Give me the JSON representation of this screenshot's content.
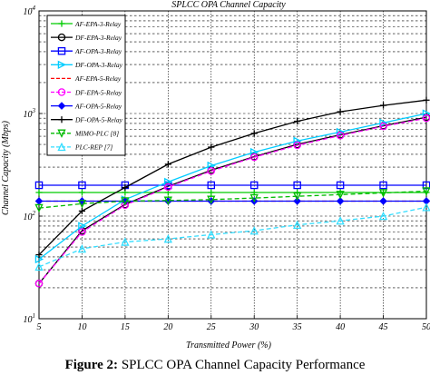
{
  "caption": {
    "label": "Figure 2:",
    "text": "SPLCC OPA Channel Capacity Performance"
  },
  "chart_data": {
    "type": "line",
    "title": "SPLCC OPA Channel Capacity",
    "xlabel": "Transmitted Power (%)",
    "ylabel": "Channel Capacity (Mbps)",
    "x": [
      5,
      10,
      15,
      20,
      25,
      30,
      35,
      40,
      45,
      50
    ],
    "xlim": [
      5,
      50
    ],
    "ylim": [
      10,
      10000
    ],
    "yscale": "log",
    "y_tick_exponents": [
      "1",
      "2",
      "3",
      "4"
    ],
    "grid": true,
    "legend_position": "top-left",
    "series": [
      {
        "name": "AF-EPA-3-Relay",
        "color": "#00cc00",
        "marker": "plus",
        "dash": "solid",
        "values": [
          170,
          170,
          170,
          170,
          170,
          170,
          170,
          170,
          170,
          170
        ]
      },
      {
        "name": "DF-EPA-3-Relay",
        "color": "#000000",
        "marker": "circle",
        "dash": "solid",
        "values": [
          22,
          72,
          130,
          195,
          280,
          380,
          500,
          620,
          760,
          920
        ]
      },
      {
        "name": "AF-OPA-3-Relay",
        "color": "#0000ff",
        "marker": "square",
        "dash": "solid",
        "values": [
          200,
          200,
          200,
          200,
          200,
          200,
          200,
          200,
          200,
          200
        ]
      },
      {
        "name": "DF-OPA-3-Relay",
        "color": "#00ccff",
        "marker": "triangle-right",
        "dash": "solid",
        "values": [
          38,
          80,
          145,
          215,
          310,
          420,
          540,
          660,
          810,
          1000
        ]
      },
      {
        "name": "AF-EPA-5-Relay",
        "color": "#ff0000",
        "marker": "none",
        "dash": "dashed",
        "values": [
          140,
          140,
          140,
          140,
          140,
          140,
          140,
          140,
          140,
          140
        ]
      },
      {
        "name": "DF-EPA-5-Relay",
        "color": "#ff00ff",
        "marker": "circle",
        "dash": "dashed",
        "values": [
          22,
          70,
          128,
          192,
          275,
          375,
          490,
          610,
          750,
          900
        ]
      },
      {
        "name": "AF-OPA-5-Relay",
        "color": "#0000ff",
        "marker": "diamond",
        "dash": "solid",
        "values": [
          140,
          140,
          140,
          140,
          140,
          140,
          140,
          140,
          140,
          140
        ]
      },
      {
        "name": "DF-OPA-5-Relay",
        "color": "#000000",
        "marker": "plus",
        "dash": "solid",
        "values": [
          42,
          112,
          190,
          320,
          470,
          640,
          840,
          1040,
          1200,
          1350
        ]
      },
      {
        "name": "MIMO-PLC [8]",
        "color": "#00bb00",
        "marker": "triangle-down",
        "dash": "dashed",
        "values": [
          120,
          132,
          140,
          142,
          145,
          150,
          156,
          162,
          168,
          175
        ]
      },
      {
        "name": "PLC-REP [7]",
        "color": "#33ddff",
        "marker": "triangle-up",
        "dash": "dashed",
        "values": [
          32,
          48,
          56,
          60,
          66,
          72,
          82,
          90,
          100,
          122
        ]
      }
    ]
  }
}
